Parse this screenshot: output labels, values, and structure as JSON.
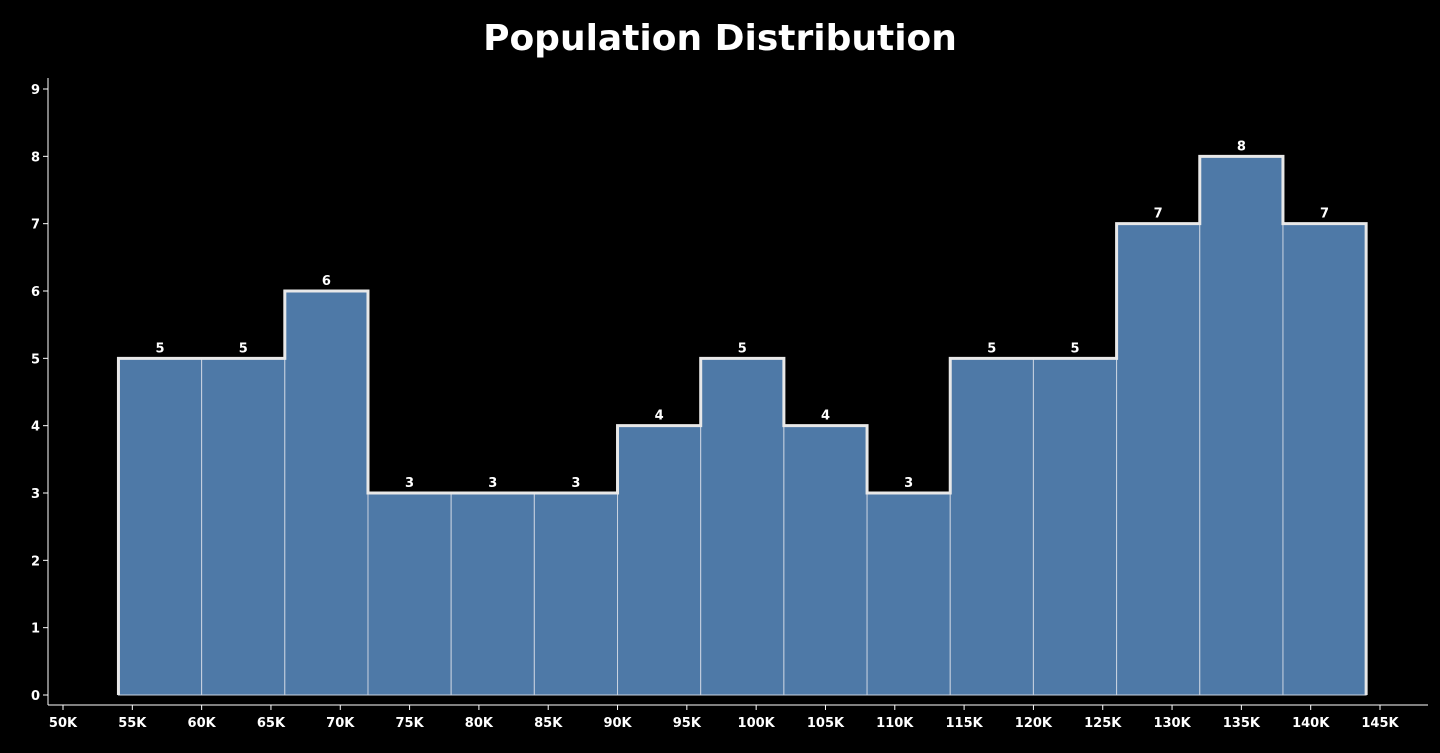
{
  "chart_data": {
    "type": "bar",
    "title": "Population Distribution",
    "xlabel": "",
    "ylabel": "",
    "xlim": [
      50000,
      145000
    ],
    "ylim": [
      0,
      9
    ],
    "bin_width": 6000,
    "bin_start": 54000,
    "values": [
      5,
      5,
      6,
      3,
      3,
      3,
      4,
      5,
      4,
      3,
      5,
      5,
      7,
      8,
      7
    ],
    "x_ticks": [
      "50K",
      "55K",
      "60K",
      "65K",
      "70K",
      "75K",
      "80K",
      "85K",
      "90K",
      "95K",
      "100K",
      "105K",
      "110K",
      "115K",
      "120K",
      "125K",
      "130K",
      "135K",
      "140K",
      "145K"
    ],
    "y_ticks": [
      "0",
      "1",
      "2",
      "3",
      "4",
      "5",
      "6",
      "7",
      "8",
      "9"
    ],
    "grid": false,
    "colors": {
      "bar_fill": "#4e79a7",
      "bar_stroke": "#ffffff",
      "background": "#000000",
      "axis": "#ffffff"
    }
  }
}
